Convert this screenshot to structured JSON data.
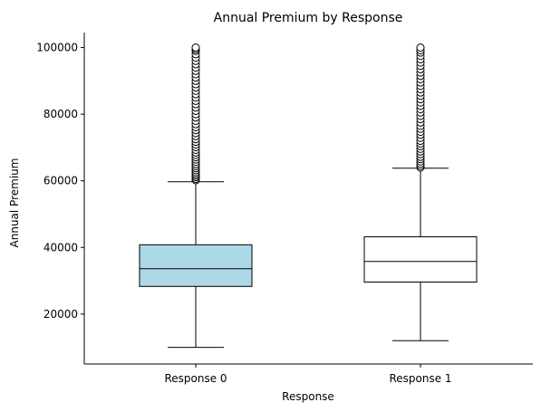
{
  "chart_data": {
    "type": "box",
    "title": "Annual Premium by Response",
    "xlabel": "Response",
    "ylabel": "Annual Premium",
    "ylim": [
      5000,
      104500
    ],
    "yticks": [
      20000,
      40000,
      60000,
      80000,
      100000
    ],
    "ytick_labels": [
      "20000",
      "40000",
      "60000",
      "80000",
      "100000"
    ],
    "grid": false,
    "categories": [
      "Response 0",
      "Response 1"
    ],
    "boxes": [
      {
        "name": "Response 0",
        "fill": "#add8e6",
        "whisker_low": 10000,
        "q1": 28300,
        "median": 33600,
        "q3": 40800,
        "whisker_high": 59700,
        "outliers": [
          60200,
          60600,
          61100,
          61600,
          62100,
          62600,
          63200,
          63800,
          64400,
          65000,
          65700,
          66400,
          67100,
          67800,
          68500,
          69300,
          70100,
          70900,
          71700,
          72500,
          73400,
          74300,
          75200,
          76100,
          77000,
          78000,
          79000,
          80000,
          81000,
          82000,
          83000,
          84000,
          85000,
          86000,
          87000,
          88000,
          89000,
          90000,
          91000,
          92000,
          93000,
          94000,
          95000,
          96000,
          97000,
          98000,
          99000,
          99500,
          100000
        ]
      },
      {
        "name": "Response 1",
        "fill": "#ffffff",
        "whisker_low": 12000,
        "q1": 29600,
        "median": 35800,
        "q3": 43200,
        "whisker_high": 63800,
        "outliers": [
          64000,
          64500,
          65100,
          65800,
          66500,
          67200,
          68000,
          68800,
          69600,
          70400,
          71200,
          72000,
          72900,
          73800,
          74700,
          75600,
          76500,
          77500,
          78500,
          79500,
          80500,
          81500,
          82500,
          83500,
          84500,
          85500,
          86500,
          87500,
          88500,
          89500,
          90500,
          91500,
          92500,
          93500,
          94500,
          95500,
          96500,
          97500,
          98500,
          99200,
          100000
        ]
      }
    ]
  }
}
